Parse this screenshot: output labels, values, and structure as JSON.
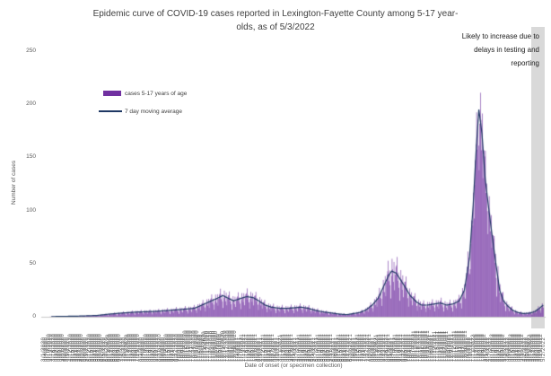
{
  "title": {
    "line1": "Epidemic curve of COVID-19 cases reported in Lexington-Fayette County among 5-17 year-",
    "line2": "olds, as of 5/3/2022"
  },
  "annotation": {
    "line1": "Likely to increase due to",
    "line2": "delays in testing and",
    "line3": "reporting"
  },
  "legend": {
    "bar_label": "cases 5-17 years of age",
    "line_label": "7 day moving average"
  },
  "y_axis": {
    "title": "Number of cases",
    "ticks": [
      0,
      50,
      100,
      150,
      200,
      250
    ]
  },
  "x_axis": {
    "title": "Date of onset (or specimen collection)",
    "start_date": "3/1/2020",
    "end_date": "5/3/2022",
    "label_interval_days": 3
  },
  "colors": {
    "bar": "#7030A0",
    "line": "#1F3864",
    "axis": "#c8c8c8",
    "band": "#d9d9d9",
    "tick_text": "#595959",
    "title_text": "#3f3f3f"
  },
  "chart_data": {
    "type": "bar",
    "title": "Epidemic curve of COVID-19 cases reported in Lexington-Fayette County among 5-17 year-olds, as of 5/3/2022",
    "xlabel": "Date of onset (or specimen collection)",
    "ylabel": "Number of cases",
    "ylim": [
      0,
      250
    ],
    "grid": false,
    "legend_position": "upper-left-inside",
    "x_start_date": "3/1/2020",
    "x_end_date": "5/3/2022",
    "days": 794,
    "series": [
      {
        "name": "cases 5-17 years of age",
        "type": "bar",
        "color": "#7030A0"
      },
      {
        "name": "7 day moving average",
        "type": "line",
        "color": "#1F3864"
      }
    ],
    "moving_average_envelope_points": [
      [
        0,
        0
      ],
      [
        25,
        0.3
      ],
      [
        55,
        0.6
      ],
      [
        85,
        1.2
      ],
      [
        105,
        2.5
      ],
      [
        125,
        3.5
      ],
      [
        150,
        4.5
      ],
      [
        175,
        5
      ],
      [
        200,
        6
      ],
      [
        222,
        7
      ],
      [
        240,
        8
      ],
      [
        252,
        11
      ],
      [
        263,
        14
      ],
      [
        275,
        17
      ],
      [
        285,
        20
      ],
      [
        295,
        17
      ],
      [
        302,
        15
      ],
      [
        312,
        17
      ],
      [
        323,
        19
      ],
      [
        333,
        18
      ],
      [
        342,
        15
      ],
      [
        352,
        11
      ],
      [
        362,
        9
      ],
      [
        375,
        8
      ],
      [
        390,
        8
      ],
      [
        409,
        9
      ],
      [
        420,
        8
      ],
      [
        432,
        6
      ],
      [
        445,
        4.5
      ],
      [
        458,
        3.5
      ],
      [
        470,
        2.5
      ],
      [
        482,
        2
      ],
      [
        492,
        3
      ],
      [
        502,
        4
      ],
      [
        512,
        6.5
      ],
      [
        522,
        11
      ],
      [
        532,
        18
      ],
      [
        541,
        30
      ],
      [
        549,
        40
      ],
      [
        553,
        43
      ],
      [
        560,
        41
      ],
      [
        572,
        30
      ],
      [
        582,
        20
      ],
      [
        592,
        14
      ],
      [
        600,
        11
      ],
      [
        609,
        11
      ],
      [
        620,
        12
      ],
      [
        630,
        13
      ],
      [
        640,
        11
      ],
      [
        650,
        12
      ],
      [
        660,
        15
      ],
      [
        668,
        25
      ],
      [
        676,
        55
      ],
      [
        682,
        105
      ],
      [
        687,
        160
      ],
      [
        691,
        195
      ],
      [
        696,
        172
      ],
      [
        701,
        130
      ],
      [
        707,
        100
      ],
      [
        713,
        72
      ],
      [
        718,
        50
      ],
      [
        724,
        25
      ],
      [
        730,
        15
      ],
      [
        737,
        10
      ],
      [
        745,
        6
      ],
      [
        753,
        4
      ],
      [
        762,
        3
      ],
      [
        772,
        3.5
      ],
      [
        780,
        5
      ],
      [
        786,
        7.5
      ],
      [
        793,
        11
      ]
    ],
    "daily_noise_cycle": [
      1.2,
      1.45,
      0.85,
      1.1,
      0.7,
      0.35,
      0.9,
      1.3,
      1.05,
      0.75,
      1.25,
      0.55,
      0.95,
      1.15
    ],
    "annotation_text": "Likely to increase due to delays in testing and reporting",
    "annotation_band_meaning": "recent days likely under-reported"
  }
}
